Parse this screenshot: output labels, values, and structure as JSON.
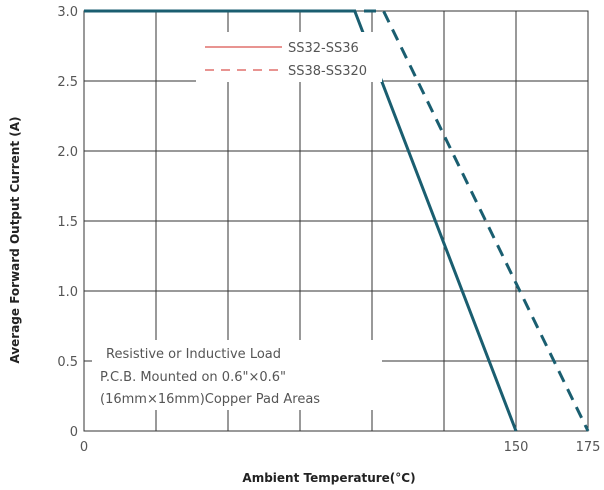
{
  "chart_data": {
    "type": "line",
    "xlabel": "Ambient Temperature(°C)",
    "ylabel": "Average Forward Output Current (A)",
    "xlim": [
      0,
      175
    ],
    "ylim": [
      0,
      3.0
    ],
    "x_ticks": [
      0,
      150,
      175
    ],
    "x_tick_labels": [
      "0",
      "150",
      "175"
    ],
    "y_ticks": [
      0,
      0.5,
      1.0,
      1.5,
      2.0,
      2.5,
      3.0
    ],
    "y_tick_labels": [
      "0",
      "0.5",
      "1.0",
      "1.5",
      "2.0",
      "2.5",
      "3.0"
    ],
    "x_grid": [
      0,
      25,
      50,
      75,
      100,
      125,
      150,
      175
    ],
    "grid": true,
    "legend_position": "top-center",
    "series": [
      {
        "name": "SS32-SS36",
        "line_style": "solid",
        "color": "#1a5e70",
        "legend_color": "#d9534f",
        "x": [
          0,
          94,
          150
        ],
        "y": [
          3.0,
          3.0,
          0
        ]
      },
      {
        "name": "SS38-SS320",
        "line_style": "dashed",
        "color": "#1a5e70",
        "legend_color": "#d9534f",
        "x": [
          0,
          104,
          175
        ],
        "y": [
          3.0,
          3.0,
          0
        ]
      }
    ],
    "annotations": [
      "Resistive or Inductive Load",
      "P.C.B. Mounted on 0.6\"×0.6\"",
      "(16mm×16mm)Copper Pad Areas"
    ]
  }
}
